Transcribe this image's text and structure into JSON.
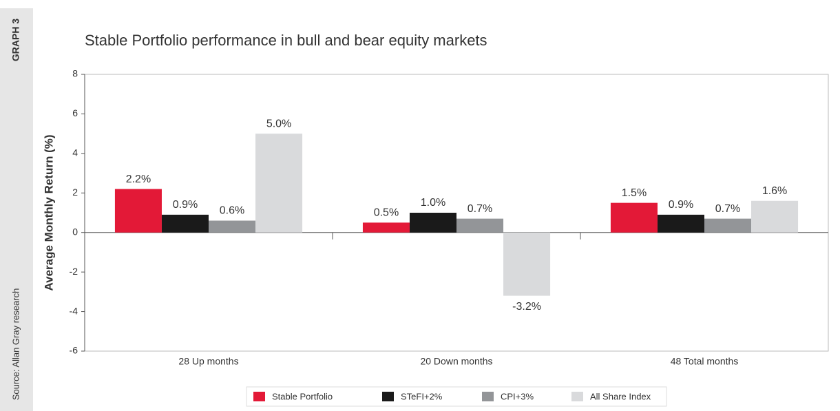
{
  "chart_data": {
    "type": "bar",
    "label": "GRAPH 3",
    "source": "Source: Allan Gray research",
    "title": "Stable Portfolio performance in bull and bear equity markets",
    "y_label": "Average Monthly Return (%)",
    "categories": [
      "28 Up months",
      "20 Down months",
      "48 Total months"
    ],
    "series": [
      {
        "name": "Stable Portfolio",
        "color": "#e31937",
        "values": [
          2.2,
          0.5,
          1.5
        ],
        "value_labels": [
          "2.2%",
          "0.5%",
          "1.5%"
        ]
      },
      {
        "name": "STeFI+2%",
        "color": "#1a1a1a",
        "values": [
          0.9,
          1.0,
          0.9
        ],
        "value_labels": [
          "0.9%",
          "1.0%",
          "0.9%"
        ]
      },
      {
        "name": "CPI+3%",
        "color": "#939598",
        "values": [
          0.6,
          0.7,
          0.7
        ],
        "value_labels": [
          "0.6%",
          "0.7%",
          "0.7%"
        ]
      },
      {
        "name": "All Share Index",
        "color": "#d9dadc",
        "values": [
          5.0,
          -3.2,
          1.6
        ],
        "value_labels": [
          "5.0%",
          "-3.2%",
          "1.6%"
        ]
      }
    ],
    "ylim": [
      -6,
      8
    ],
    "yticks": [
      -6,
      -4,
      -2,
      0,
      2,
      4,
      6,
      8
    ],
    "legend": "bottom"
  }
}
